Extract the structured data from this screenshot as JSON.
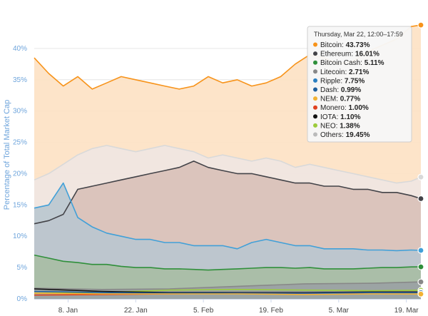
{
  "chart_data": {
    "type": "area",
    "title": "",
    "ylabel": "Percentage of Total Market Cap",
    "xlabel": "",
    "ylim": [
      0,
      45
    ],
    "y_ticks": [
      "0%",
      "5%",
      "10%",
      "15%",
      "20%",
      "25%",
      "30%",
      "35%",
      "40%"
    ],
    "x_ticks": [
      "8. Jan",
      "22. Jan",
      "5. Feb",
      "19. Feb",
      "5. Mar",
      "19. Mar"
    ],
    "x_start": "2018-01-01",
    "x_end": "2018-03-22",
    "x_tick_dates": [
      "2018-01-08",
      "2018-01-22",
      "2018-02-05",
      "2018-02-19",
      "2018-03-05",
      "2018-03-19"
    ],
    "tooltip": {
      "header": "Thursday, Mar 22, 12:00–17:59",
      "rows": [
        {
          "name": "Bitcoin",
          "value": "43.73%",
          "color": "#f7931a"
        },
        {
          "name": "Ethereum",
          "value": "16.01%",
          "color": "#434348"
        },
        {
          "name": "Bitcoin Cash",
          "value": "5.11%",
          "color": "#2f8f3a"
        },
        {
          "name": "Litecoin",
          "value": "2.71%",
          "color": "#888888"
        },
        {
          "name": "Ripple",
          "value": "7.75%",
          "color": "#2b7fc1"
        },
        {
          "name": "Dash",
          "value": "0.99%",
          "color": "#1f5f9e"
        },
        {
          "name": "NEM",
          "value": "0.77%",
          "color": "#f2b233"
        },
        {
          "name": "Monero",
          "value": "1.00%",
          "color": "#e0411f"
        },
        {
          "name": "IOTA",
          "value": "1.10%",
          "color": "#111111"
        },
        {
          "name": "NEO",
          "value": "1.38%",
          "color": "#9ccb3b"
        },
        {
          "name": "Others",
          "value": "19.45%",
          "color": "#bbbbbb"
        }
      ]
    },
    "series": [
      {
        "name": "Bitcoin",
        "color": "#f7931a",
        "fill": "#fde1c3",
        "x": [
          "2018-01-01",
          "2018-01-04",
          "2018-01-07",
          "2018-01-10",
          "2018-01-13",
          "2018-01-16",
          "2018-01-19",
          "2018-01-22",
          "2018-01-25",
          "2018-01-28",
          "2018-01-31",
          "2018-02-03",
          "2018-02-06",
          "2018-02-09",
          "2018-02-12",
          "2018-02-15",
          "2018-02-18",
          "2018-02-21",
          "2018-02-24",
          "2018-02-27",
          "2018-03-02",
          "2018-03-05",
          "2018-03-08",
          "2018-03-11",
          "2018-03-14",
          "2018-03-17",
          "2018-03-20",
          "2018-03-22"
        ],
        "values": [
          38.5,
          36.0,
          34.0,
          35.5,
          33.5,
          34.5,
          35.5,
          35.0,
          34.5,
          34.0,
          33.5,
          34.0,
          35.5,
          34.5,
          35.0,
          34.0,
          34.5,
          35.5,
          37.5,
          39.0,
          38.5,
          37.5,
          38.0,
          39.5,
          40.5,
          41.5,
          43.5,
          43.73
        ]
      },
      {
        "name": "Others",
        "color": "#d9d9d9",
        "fill": "#efe6e2",
        "x": [
          "2018-01-01",
          "2018-01-04",
          "2018-01-07",
          "2018-01-10",
          "2018-01-13",
          "2018-01-16",
          "2018-01-19",
          "2018-01-22",
          "2018-01-25",
          "2018-01-28",
          "2018-01-31",
          "2018-02-03",
          "2018-02-06",
          "2018-02-09",
          "2018-02-12",
          "2018-02-15",
          "2018-02-18",
          "2018-02-21",
          "2018-02-24",
          "2018-02-27",
          "2018-03-02",
          "2018-03-05",
          "2018-03-08",
          "2018-03-11",
          "2018-03-14",
          "2018-03-17",
          "2018-03-20",
          "2018-03-22"
        ],
        "values": [
          19.0,
          20.0,
          21.5,
          23.0,
          24.0,
          24.5,
          24.0,
          23.5,
          24.0,
          24.5,
          24.0,
          23.5,
          22.5,
          23.0,
          22.5,
          22.0,
          22.5,
          22.0,
          21.0,
          21.5,
          21.0,
          20.5,
          20.0,
          19.5,
          19.0,
          18.5,
          18.8,
          19.45
        ]
      },
      {
        "name": "Ethereum",
        "color": "#434348",
        "fill": "#d8c0b8",
        "x": [
          "2018-01-01",
          "2018-01-04",
          "2018-01-07",
          "2018-01-10",
          "2018-01-13",
          "2018-01-16",
          "2018-01-19",
          "2018-01-22",
          "2018-01-25",
          "2018-01-28",
          "2018-01-31",
          "2018-02-03",
          "2018-02-06",
          "2018-02-09",
          "2018-02-12",
          "2018-02-15",
          "2018-02-18",
          "2018-02-21",
          "2018-02-24",
          "2018-02-27",
          "2018-03-02",
          "2018-03-05",
          "2018-03-08",
          "2018-03-11",
          "2018-03-14",
          "2018-03-17",
          "2018-03-20",
          "2018-03-22"
        ],
        "values": [
          12.0,
          12.5,
          13.5,
          17.5,
          18.0,
          18.5,
          19.0,
          19.5,
          20.0,
          20.5,
          21.0,
          22.0,
          21.0,
          20.5,
          20.0,
          20.0,
          19.5,
          19.0,
          18.5,
          18.5,
          18.0,
          18.0,
          17.5,
          17.5,
          17.0,
          17.0,
          16.5,
          16.01
        ]
      },
      {
        "name": "Ripple",
        "color": "#41a0d8",
        "fill": "#b9c6cf",
        "x": [
          "2018-01-01",
          "2018-01-04",
          "2018-01-07",
          "2018-01-10",
          "2018-01-13",
          "2018-01-16",
          "2018-01-19",
          "2018-01-22",
          "2018-01-25",
          "2018-01-28",
          "2018-01-31",
          "2018-02-03",
          "2018-02-06",
          "2018-02-09",
          "2018-02-12",
          "2018-02-15",
          "2018-02-18",
          "2018-02-21",
          "2018-02-24",
          "2018-02-27",
          "2018-03-02",
          "2018-03-05",
          "2018-03-08",
          "2018-03-11",
          "2018-03-14",
          "2018-03-17",
          "2018-03-20",
          "2018-03-22"
        ],
        "values": [
          14.5,
          15.0,
          18.5,
          13.0,
          11.5,
          10.5,
          10.0,
          9.5,
          9.5,
          9.0,
          9.0,
          8.5,
          8.5,
          8.5,
          8.0,
          9.0,
          9.5,
          9.0,
          8.5,
          8.5,
          8.0,
          8.0,
          8.0,
          7.8,
          7.8,
          7.7,
          7.8,
          7.75
        ]
      },
      {
        "name": "Bitcoin Cash",
        "color": "#2f8f3a",
        "fill": "#a7bca4",
        "x": [
          "2018-01-01",
          "2018-01-04",
          "2018-01-07",
          "2018-01-10",
          "2018-01-13",
          "2018-01-16",
          "2018-01-19",
          "2018-01-22",
          "2018-01-25",
          "2018-01-28",
          "2018-01-31",
          "2018-02-03",
          "2018-02-06",
          "2018-02-09",
          "2018-02-12",
          "2018-02-15",
          "2018-02-18",
          "2018-02-21",
          "2018-02-24",
          "2018-02-27",
          "2018-03-02",
          "2018-03-05",
          "2018-03-08",
          "2018-03-11",
          "2018-03-14",
          "2018-03-17",
          "2018-03-20",
          "2018-03-22"
        ],
        "values": [
          7.0,
          6.5,
          6.0,
          5.8,
          5.5,
          5.5,
          5.2,
          5.0,
          5.0,
          4.8,
          4.8,
          4.7,
          4.6,
          4.7,
          4.8,
          4.9,
          5.0,
          5.0,
          4.9,
          5.0,
          4.8,
          4.8,
          4.8,
          4.9,
          5.0,
          5.0,
          5.1,
          5.11
        ]
      },
      {
        "name": "Litecoin",
        "color": "#888888",
        "fill": "#9aa1a3",
        "x": [
          "2018-01-01",
          "2018-01-15",
          "2018-01-29",
          "2018-02-12",
          "2018-02-26",
          "2018-03-12",
          "2018-03-22"
        ],
        "values": [
          1.7,
          1.5,
          1.6,
          2.0,
          2.4,
          2.5,
          2.71
        ]
      },
      {
        "name": "NEO",
        "color": "#9ccb3b",
        "fill": "none",
        "x": [
          "2018-01-01",
          "2018-01-15",
          "2018-01-29",
          "2018-02-12",
          "2018-02-26",
          "2018-03-12",
          "2018-03-22"
        ],
        "values": [
          0.9,
          1.0,
          1.4,
          1.5,
          1.4,
          1.3,
          1.38
        ]
      },
      {
        "name": "IOTA",
        "color": "#111111",
        "fill": "none",
        "x": [
          "2018-01-01",
          "2018-01-15",
          "2018-01-29",
          "2018-02-12",
          "2018-02-26",
          "2018-03-12",
          "2018-03-22"
        ],
        "values": [
          1.6,
          1.2,
          1.0,
          1.0,
          1.0,
          1.1,
          1.1
        ]
      },
      {
        "name": "Monero",
        "color": "#e0411f",
        "fill": "none",
        "x": [
          "2018-01-01",
          "2018-01-15",
          "2018-01-29",
          "2018-02-12",
          "2018-02-26",
          "2018-03-12",
          "2018-03-22"
        ],
        "values": [
          0.6,
          0.7,
          0.8,
          0.9,
          0.9,
          1.0,
          1.0
        ]
      },
      {
        "name": "Dash",
        "color": "#1f5f9e",
        "fill": "none",
        "x": [
          "2018-01-01",
          "2018-01-15",
          "2018-01-29",
          "2018-02-12",
          "2018-02-26",
          "2018-03-12",
          "2018-03-22"
        ],
        "values": [
          1.2,
          1.0,
          0.9,
          0.9,
          0.9,
          1.0,
          0.99
        ]
      },
      {
        "name": "NEM",
        "color": "#f2b233",
        "fill": "none",
        "x": [
          "2018-01-01",
          "2018-01-15",
          "2018-01-29",
          "2018-02-12",
          "2018-02-26",
          "2018-03-12",
          "2018-03-22"
        ],
        "values": [
          0.9,
          0.8,
          0.8,
          0.8,
          0.7,
          0.8,
          0.77
        ]
      }
    ]
  }
}
